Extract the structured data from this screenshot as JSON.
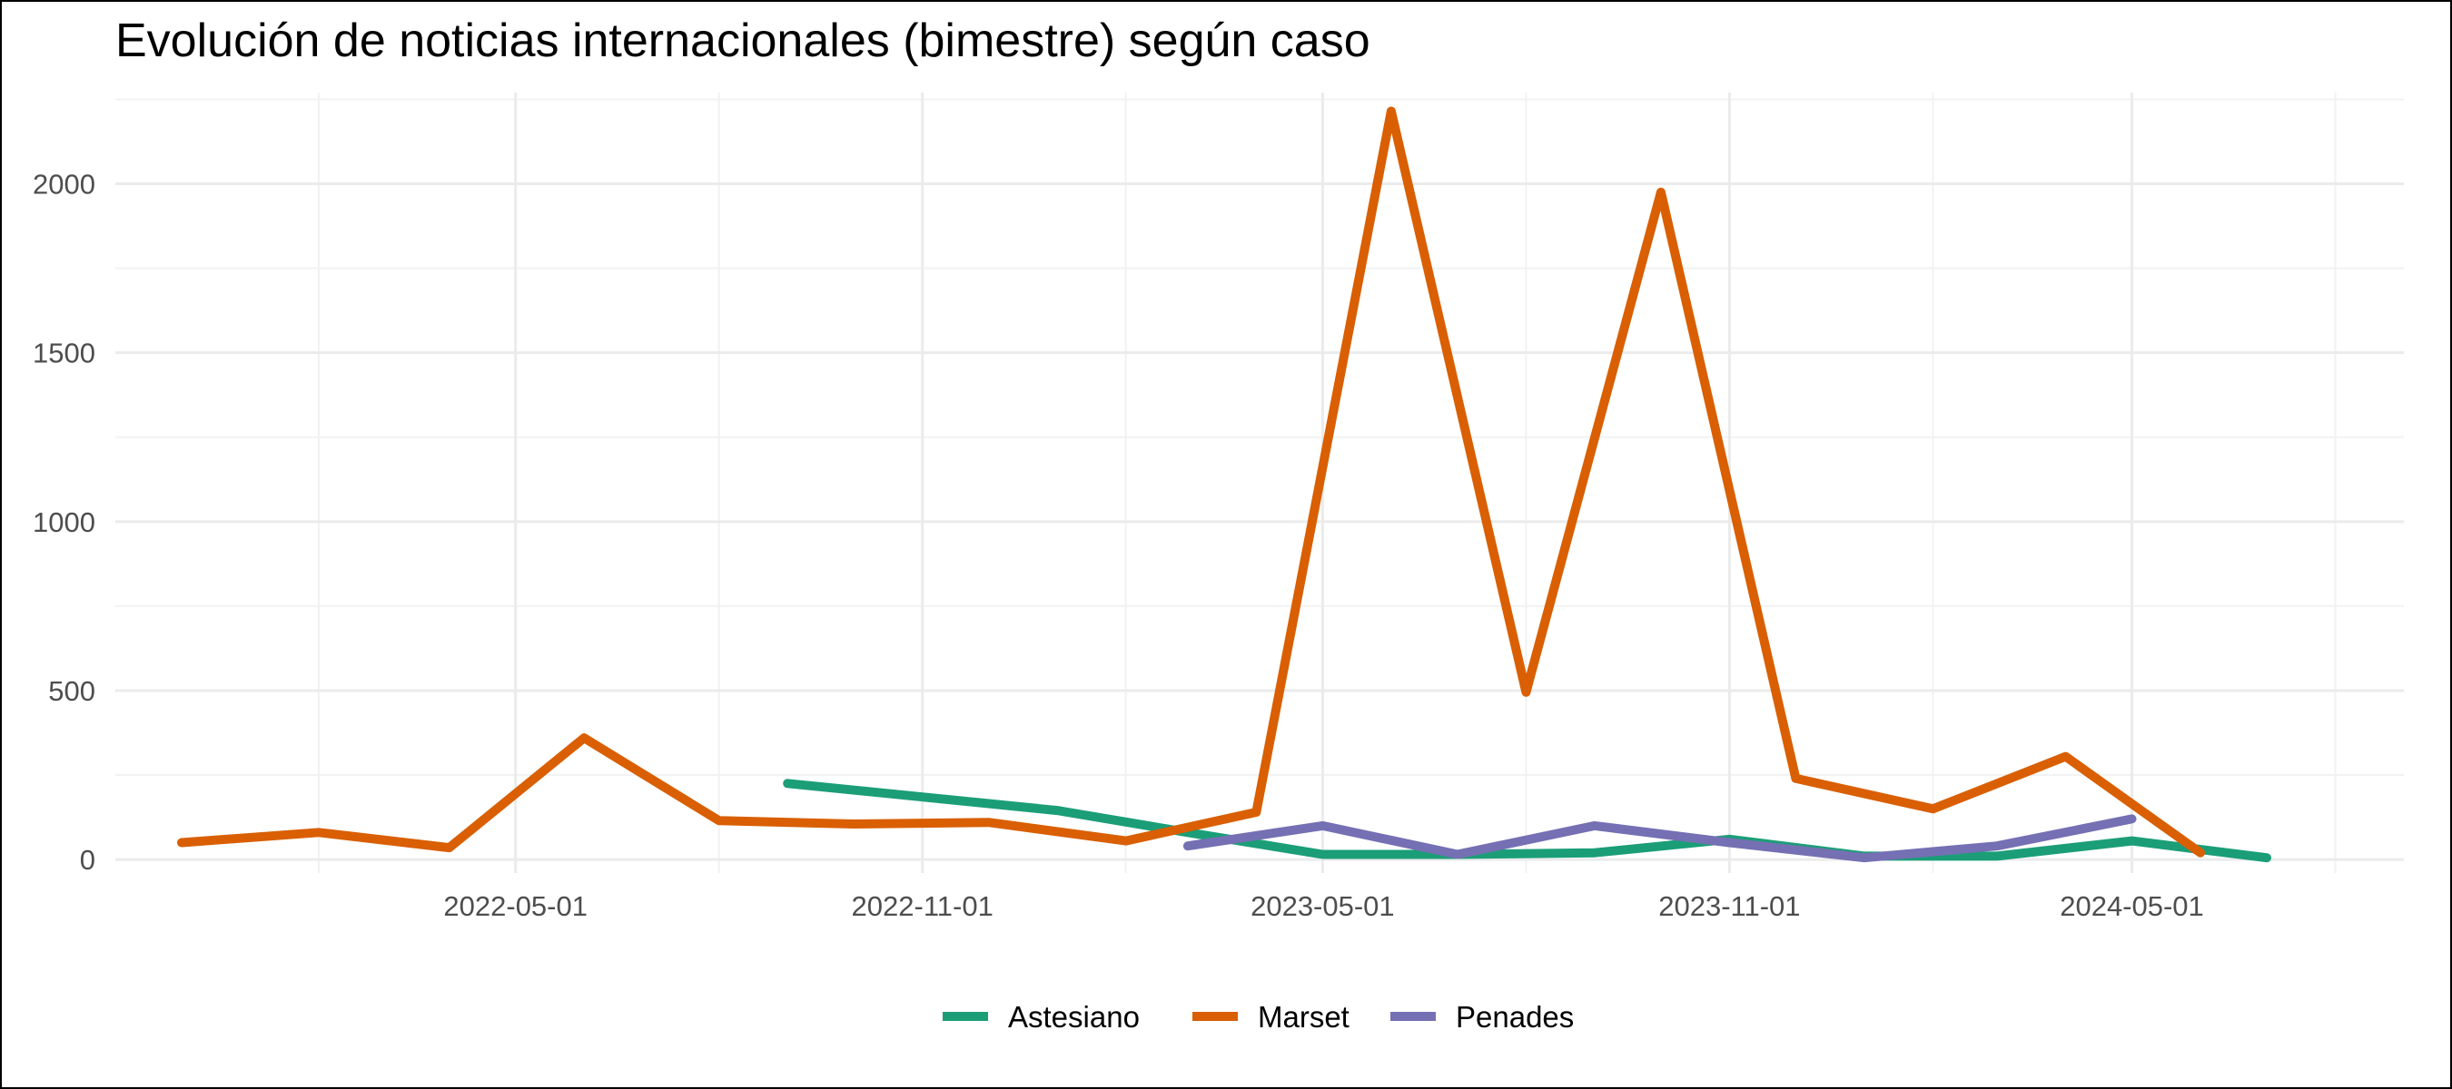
{
  "chart_data": {
    "type": "line",
    "title": "Evolución de noticias internacionales (bimestre) según caso",
    "xlabel": "",
    "ylabel": "",
    "x_tick_labels": [
      "2022-05-01",
      "2022-11-01",
      "2023-05-01",
      "2023-11-01",
      "2024-05-01"
    ],
    "x_ticks": [
      "2022-05-01",
      "2022-11-01",
      "2023-05-01",
      "2023-11-01",
      "2024-05-01"
    ],
    "x_minor_ticks": [
      "2022-02-01",
      "2022-08-01",
      "2023-02-01",
      "2023-08-01",
      "2024-02-01",
      "2024-08-01"
    ],
    "xlim": [
      "2021-11-01",
      "2024-09-01"
    ],
    "ylim": [
      -40,
      2270
    ],
    "y_ticks": [
      0,
      500,
      1000,
      1500,
      2000
    ],
    "y_tick_labels": [
      "0",
      "500",
      "1000",
      "1500",
      "2000"
    ],
    "y_minor_ticks": [
      250,
      750,
      1250,
      1750,
      2250
    ],
    "grid": true,
    "legend_position": "bottom",
    "series": [
      {
        "name": "Astesiano",
        "color": "#1b9e77",
        "x": [
          "2022-09-01",
          "2022-11-01",
          "2023-01-01",
          "2023-03-01",
          "2023-05-01",
          "2023-07-01",
          "2023-09-01",
          "2023-11-01",
          "2024-01-01",
          "2024-03-01",
          "2024-05-01",
          "2024-07-01"
        ],
        "values": [
          225,
          185,
          145,
          80,
          15,
          15,
          20,
          60,
          10,
          10,
          55,
          5
        ]
      },
      {
        "name": "Marset",
        "color": "#d95f02",
        "x": [
          "2021-12-01",
          "2022-02-01",
          "2022-04-01",
          "2022-06-01",
          "2022-08-01",
          "2022-10-01",
          "2022-12-01",
          "2023-02-01",
          "2023-04-01",
          "2023-06-01",
          "2023-08-01",
          "2023-10-01",
          "2023-12-01",
          "2024-02-01",
          "2024-04-01",
          "2024-06-01"
        ],
        "values": [
          50,
          80,
          35,
          360,
          115,
          105,
          110,
          55,
          140,
          2215,
          495,
          1975,
          240,
          150,
          305,
          20
        ]
      },
      {
        "name": "Penades",
        "color": "#7570b3",
        "x": [
          "2023-03-01",
          "2023-05-01",
          "2023-07-01",
          "2023-09-01",
          "2023-11-01",
          "2024-01-01",
          "2024-03-01",
          "2024-05-01"
        ],
        "values": [
          40,
          100,
          15,
          100,
          50,
          5,
          40,
          120
        ]
      }
    ]
  }
}
